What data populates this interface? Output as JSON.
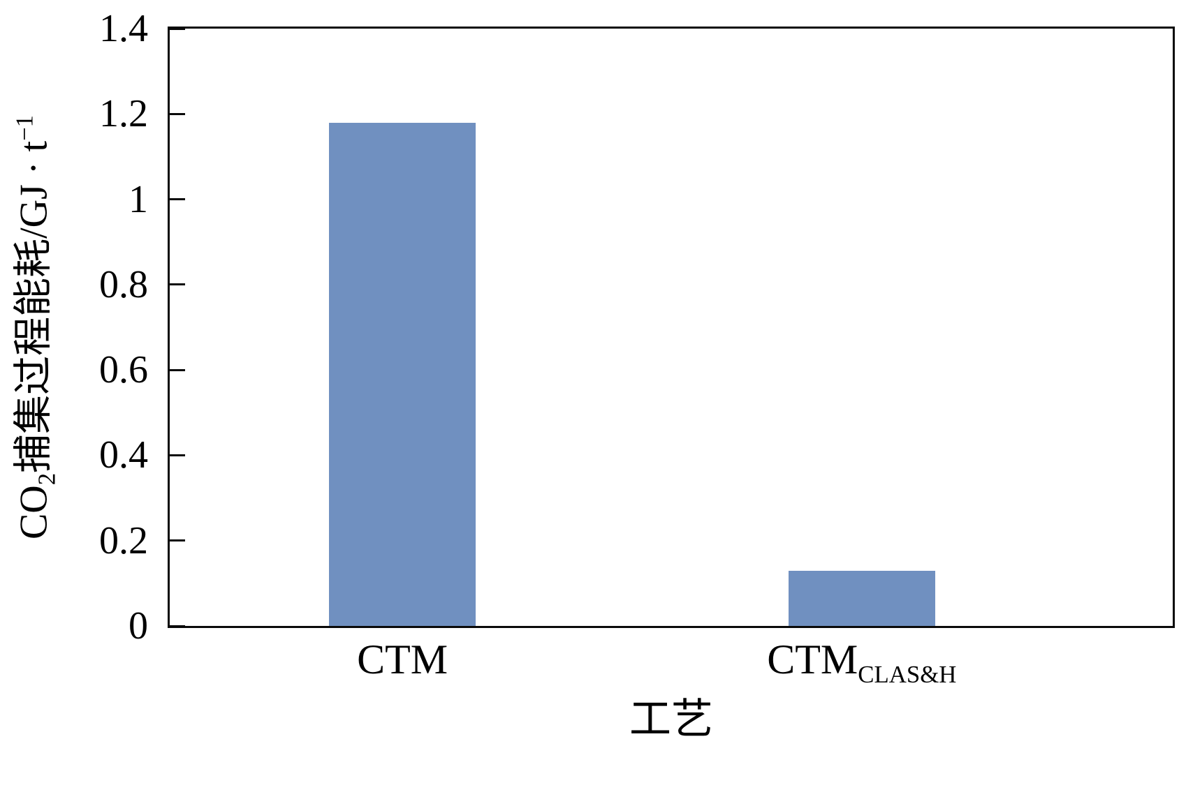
{
  "chart_data": {
    "type": "bar",
    "title": "",
    "categories": [
      "CTM",
      "CTM_CLAS&H"
    ],
    "values": [
      1.18,
      0.13
    ],
    "xlabel": "工艺",
    "ylabel": "CO2捕集过程能耗/GJ · t−1",
    "ylim": [
      0,
      1.4
    ],
    "yticks": [
      0,
      0.2,
      0.4,
      0.6,
      0.8,
      1.0,
      1.2,
      1.4
    ],
    "ytick_labels": [
      "0",
      "0.2",
      "0.4",
      "0.6",
      "0.8",
      "1",
      "1.2",
      "1.4"
    ],
    "bar_color": "#7090C0",
    "grid": false,
    "legend": false,
    "layout": {
      "bar_centers_frac": [
        0.232,
        0.69
      ],
      "bar_width_frac": 0.146
    }
  },
  "labels": {
    "ylabel": {
      "pre": "CO",
      "sub": "2",
      "mid": "捕集过程能耗/GJ · t",
      "sup": "−1"
    },
    "xlabel": "工艺",
    "xticks": [
      {
        "main": "CTM",
        "sub": ""
      },
      {
        "main": "CTM",
        "sub": "CLAS&H"
      }
    ]
  }
}
